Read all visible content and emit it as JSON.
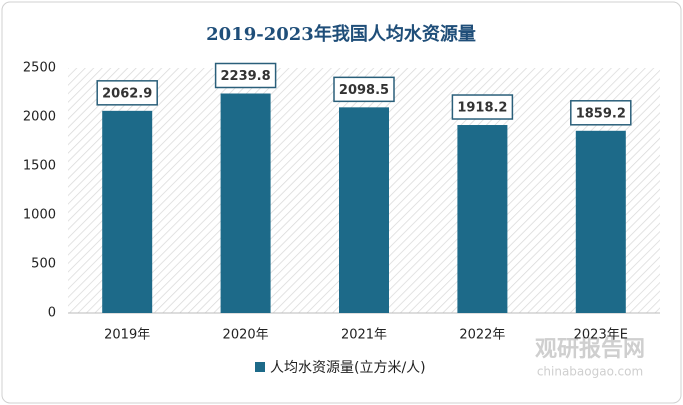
{
  "chart_data": {
    "type": "bar",
    "title": "2019-2023年我国人均水资源量",
    "categories": [
      "2019年",
      "2020年",
      "2021年",
      "2022年",
      "2023年E"
    ],
    "series": [
      {
        "name": "人均水资源量(立方米/人)",
        "color": "#1d6a89",
        "values": [
          2062.9,
          2239.8,
          2098.5,
          1918.2,
          1859.2
        ]
      }
    ],
    "ylim": [
      0,
      2500
    ],
    "yticks": [
      0,
      500,
      1000,
      1500,
      2000,
      2500
    ],
    "grid": false,
    "legend": "bottom",
    "watermark": [
      "观研报告网",
      "chinabaogao.com"
    ]
  }
}
